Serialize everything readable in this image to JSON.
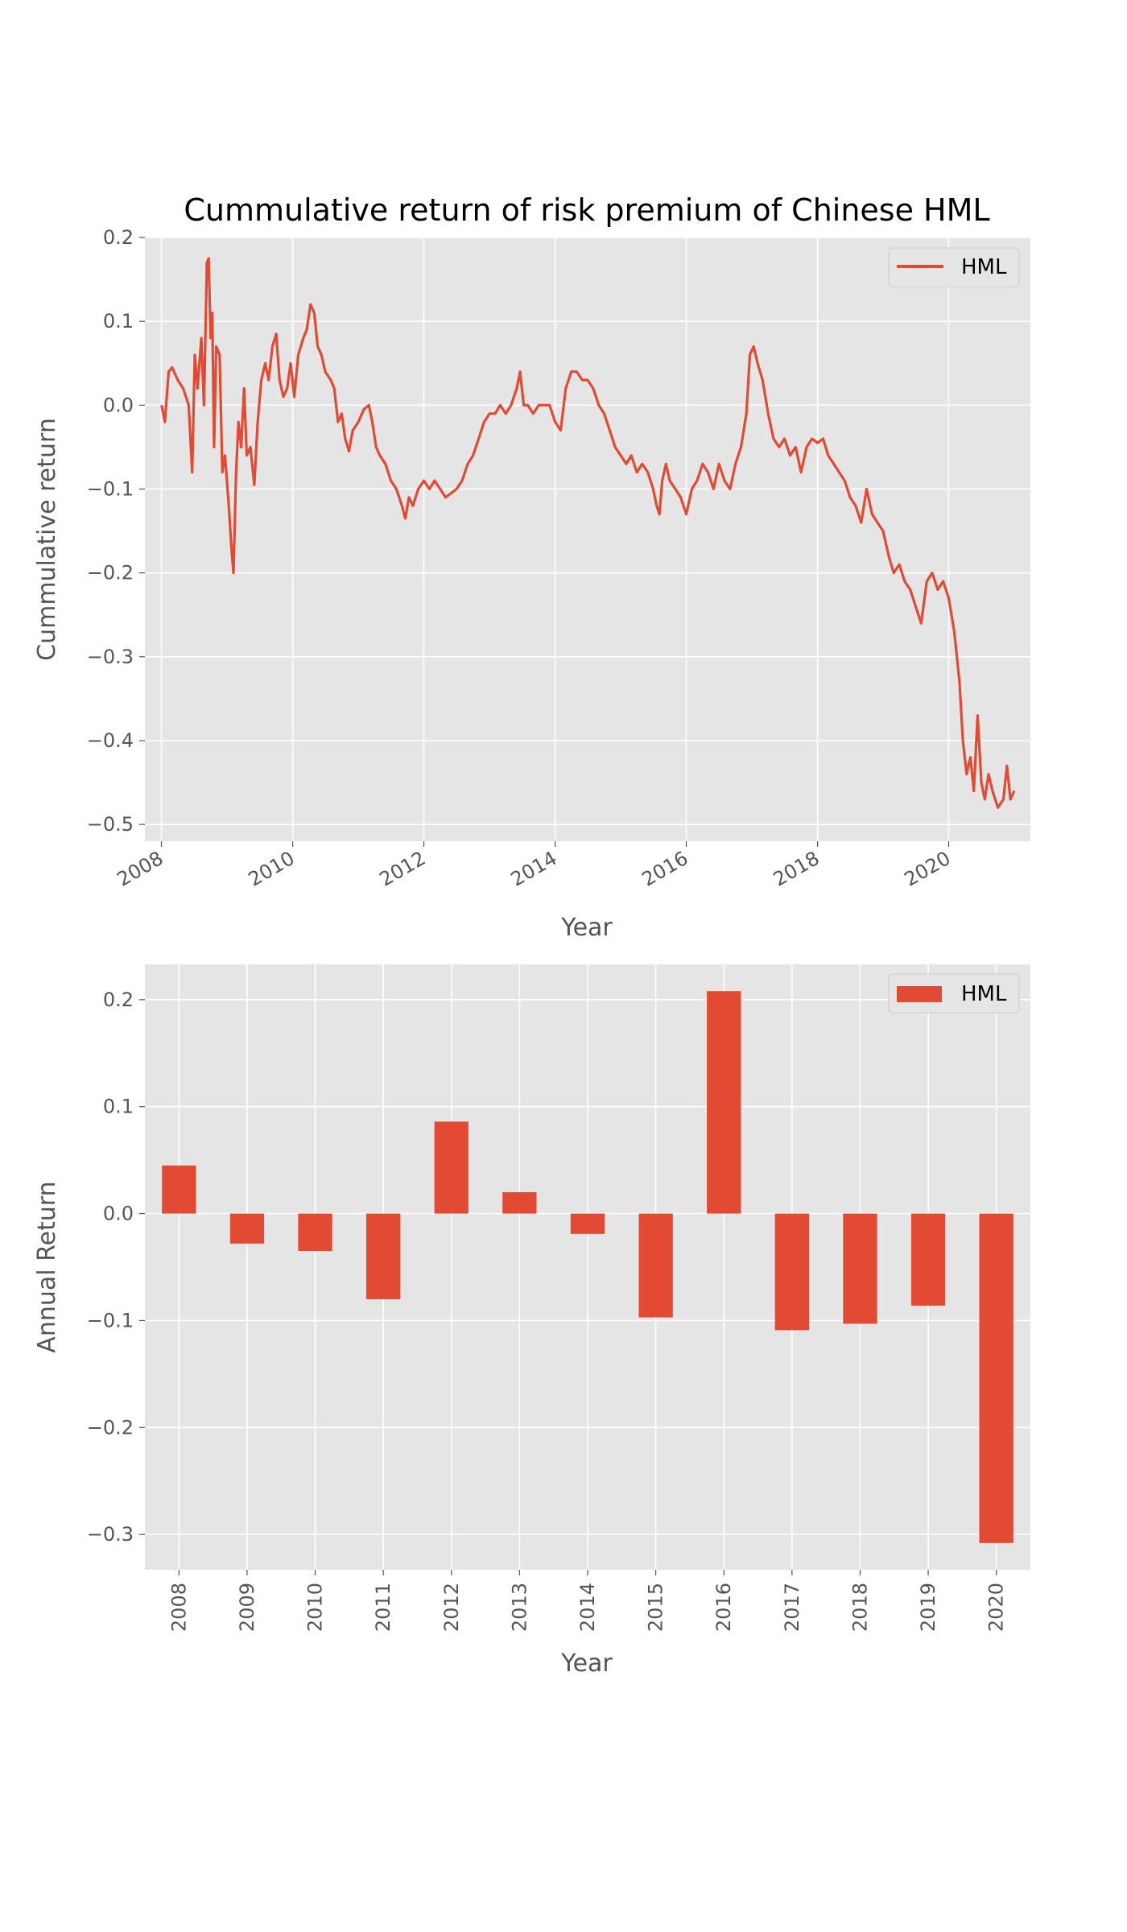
{
  "colors": {
    "axes_bg": "#E5E5E5",
    "grid": "#FFFFFF",
    "series": "#E24A33",
    "tick_text": "#555555",
    "legend_bg": "#E5E5E5",
    "legend_border": "#CCCCCC"
  },
  "chart_data": [
    {
      "type": "line",
      "title": "Cummulative return of risk premium of Chinese HML",
      "xlabel": "Year",
      "ylabel": "Cummulative return",
      "x_type": "date",
      "xlim": [
        "2007-10-01",
        "2021-03-31"
      ],
      "ylim": [
        -0.52,
        0.2
      ],
      "x_ticks": [
        "2008",
        "2010",
        "2012",
        "2014",
        "2016",
        "2018",
        "2020"
      ],
      "y_ticks": [
        "0.2",
        "0.1",
        "0.0",
        "−0.1",
        "−0.2",
        "−0.3",
        "−0.4",
        "−0.5"
      ],
      "y_tick_values": [
        0.2,
        0.1,
        0.0,
        -0.1,
        -0.2,
        -0.3,
        -0.4,
        -0.5
      ],
      "grid": true,
      "legend_position": "top-right",
      "series": [
        {
          "name": "HML",
          "points": [
            [
              "2008-01-02",
              0.0
            ],
            [
              "2008-01-20",
              -0.02
            ],
            [
              "2008-02-10",
              0.04
            ],
            [
              "2008-03-01",
              0.045
            ],
            [
              "2008-04-01",
              0.03
            ],
            [
              "2008-05-01",
              0.02
            ],
            [
              "2008-06-01",
              0.0
            ],
            [
              "2008-06-20",
              -0.08
            ],
            [
              "2008-07-05",
              0.06
            ],
            [
              "2008-07-20",
              0.02
            ],
            [
              "2008-08-10",
              0.08
            ],
            [
              "2008-08-25",
              0.0
            ],
            [
              "2008-09-10",
              0.17
            ],
            [
              "2008-09-20",
              0.175
            ],
            [
              "2008-10-01",
              0.08
            ],
            [
              "2008-10-10",
              0.11
            ],
            [
              "2008-10-20",
              -0.05
            ],
            [
              "2008-11-01",
              0.07
            ],
            [
              "2008-11-20",
              0.06
            ],
            [
              "2008-12-05",
              -0.08
            ],
            [
              "2008-12-20",
              -0.06
            ],
            [
              "2009-01-10",
              -0.12
            ],
            [
              "2009-01-25",
              -0.17
            ],
            [
              "2009-02-05",
              -0.2
            ],
            [
              "2009-02-20",
              -0.08
            ],
            [
              "2009-03-05",
              -0.02
            ],
            [
              "2009-03-20",
              -0.05
            ],
            [
              "2009-04-05",
              0.02
            ],
            [
              "2009-04-20",
              -0.06
            ],
            [
              "2009-05-10",
              -0.05
            ],
            [
              "2009-06-01",
              -0.095
            ],
            [
              "2009-06-20",
              -0.02
            ],
            [
              "2009-07-10",
              0.03
            ],
            [
              "2009-08-01",
              0.05
            ],
            [
              "2009-08-20",
              0.03
            ],
            [
              "2009-09-10",
              0.07
            ],
            [
              "2009-10-01",
              0.085
            ],
            [
              "2009-10-20",
              0.03
            ],
            [
              "2009-11-10",
              0.01
            ],
            [
              "2009-12-01",
              0.02
            ],
            [
              "2009-12-20",
              0.05
            ],
            [
              "2010-01-10",
              0.01
            ],
            [
              "2010-02-01",
              0.06
            ],
            [
              "2010-03-01",
              0.08
            ],
            [
              "2010-03-20",
              0.09
            ],
            [
              "2010-04-10",
              0.12
            ],
            [
              "2010-05-01",
              0.11
            ],
            [
              "2010-05-20",
              0.07
            ],
            [
              "2010-06-10",
              0.06
            ],
            [
              "2010-07-01",
              0.04
            ],
            [
              "2010-08-01",
              0.03
            ],
            [
              "2010-08-20",
              0.02
            ],
            [
              "2010-09-10",
              -0.02
            ],
            [
              "2010-10-01",
              -0.01
            ],
            [
              "2010-10-20",
              -0.04
            ],
            [
              "2010-11-10",
              -0.055
            ],
            [
              "2010-12-01",
              -0.03
            ],
            [
              "2011-01-01",
              -0.02
            ],
            [
              "2011-02-01",
              -0.005
            ],
            [
              "2011-03-01",
              0.0
            ],
            [
              "2011-03-20",
              -0.02
            ],
            [
              "2011-04-10",
              -0.05
            ],
            [
              "2011-05-01",
              -0.06
            ],
            [
              "2011-06-01",
              -0.07
            ],
            [
              "2011-07-01",
              -0.09
            ],
            [
              "2011-08-01",
              -0.1
            ],
            [
              "2011-09-01",
              -0.12
            ],
            [
              "2011-09-20",
              -0.135
            ],
            [
              "2011-10-10",
              -0.11
            ],
            [
              "2011-11-01",
              -0.12
            ],
            [
              "2011-12-01",
              -0.1
            ],
            [
              "2012-01-01",
              -0.09
            ],
            [
              "2012-02-01",
              -0.1
            ],
            [
              "2012-03-01",
              -0.09
            ],
            [
              "2012-04-01",
              -0.1
            ],
            [
              "2012-05-01",
              -0.11
            ],
            [
              "2012-06-01",
              -0.105
            ],
            [
              "2012-07-01",
              -0.1
            ],
            [
              "2012-08-01",
              -0.09
            ],
            [
              "2012-09-01",
              -0.07
            ],
            [
              "2012-10-01",
              -0.06
            ],
            [
              "2012-11-01",
              -0.04
            ],
            [
              "2012-12-01",
              -0.02
            ],
            [
              "2013-01-01",
              -0.01
            ],
            [
              "2013-02-01",
              -0.01
            ],
            [
              "2013-03-01",
              0.0
            ],
            [
              "2013-04-01",
              -0.01
            ],
            [
              "2013-05-01",
              0.0
            ],
            [
              "2013-06-01",
              0.02
            ],
            [
              "2013-06-20",
              0.04
            ],
            [
              "2013-07-10",
              0.0
            ],
            [
              "2013-08-01",
              0.0
            ],
            [
              "2013-09-01",
              -0.01
            ],
            [
              "2013-10-01",
              0.0
            ],
            [
              "2013-11-01",
              0.0
            ],
            [
              "2013-12-01",
              0.0
            ],
            [
              "2014-01-01",
              -0.02
            ],
            [
              "2014-02-01",
              -0.03
            ],
            [
              "2014-03-01",
              0.02
            ],
            [
              "2014-04-01",
              0.04
            ],
            [
              "2014-05-01",
              0.04
            ],
            [
              "2014-06-01",
              0.03
            ],
            [
              "2014-07-01",
              0.03
            ],
            [
              "2014-08-01",
              0.02
            ],
            [
              "2014-09-01",
              0.0
            ],
            [
              "2014-10-01",
              -0.01
            ],
            [
              "2014-11-01",
              -0.03
            ],
            [
              "2014-12-01",
              -0.05
            ],
            [
              "2015-01-01",
              -0.06
            ],
            [
              "2015-02-01",
              -0.07
            ],
            [
              "2015-03-01",
              -0.06
            ],
            [
              "2015-04-01",
              -0.08
            ],
            [
              "2015-05-01",
              -0.07
            ],
            [
              "2015-06-01",
              -0.08
            ],
            [
              "2015-07-01",
              -0.1
            ],
            [
              "2015-07-20",
              -0.12
            ],
            [
              "2015-08-05",
              -0.13
            ],
            [
              "2015-08-20",
              -0.09
            ],
            [
              "2015-09-10",
              -0.07
            ],
            [
              "2015-10-01",
              -0.09
            ],
            [
              "2015-11-01",
              -0.1
            ],
            [
              "2015-12-01",
              -0.11
            ],
            [
              "2016-01-01",
              -0.13
            ],
            [
              "2016-02-01",
              -0.1
            ],
            [
              "2016-03-01",
              -0.09
            ],
            [
              "2016-04-01",
              -0.07
            ],
            [
              "2016-05-01",
              -0.08
            ],
            [
              "2016-06-01",
              -0.1
            ],
            [
              "2016-07-01",
              -0.07
            ],
            [
              "2016-08-01",
              -0.09
            ],
            [
              "2016-09-01",
              -0.1
            ],
            [
              "2016-10-01",
              -0.07
            ],
            [
              "2016-11-01",
              -0.05
            ],
            [
              "2016-12-01",
              -0.01
            ],
            [
              "2016-12-20",
              0.06
            ],
            [
              "2017-01-10",
              0.07
            ],
            [
              "2017-02-01",
              0.05
            ],
            [
              "2017-03-01",
              0.03
            ],
            [
              "2017-04-01",
              -0.01
            ],
            [
              "2017-05-01",
              -0.04
            ],
            [
              "2017-06-01",
              -0.05
            ],
            [
              "2017-07-01",
              -0.04
            ],
            [
              "2017-08-01",
              -0.06
            ],
            [
              "2017-09-01",
              -0.05
            ],
            [
              "2017-10-01",
              -0.08
            ],
            [
              "2017-11-01",
              -0.05
            ],
            [
              "2017-12-01",
              -0.04
            ],
            [
              "2018-01-01",
              -0.045
            ],
            [
              "2018-02-01",
              -0.04
            ],
            [
              "2018-03-01",
              -0.06
            ],
            [
              "2018-04-01",
              -0.07
            ],
            [
              "2018-05-01",
              -0.08
            ],
            [
              "2018-06-01",
              -0.09
            ],
            [
              "2018-07-01",
              -0.11
            ],
            [
              "2018-08-01",
              -0.12
            ],
            [
              "2018-09-01",
              -0.14
            ],
            [
              "2018-10-01",
              -0.1
            ],
            [
              "2018-11-01",
              -0.13
            ],
            [
              "2018-12-01",
              -0.14
            ],
            [
              "2019-01-01",
              -0.15
            ],
            [
              "2019-02-01",
              -0.18
            ],
            [
              "2019-03-01",
              -0.2
            ],
            [
              "2019-04-01",
              -0.19
            ],
            [
              "2019-05-01",
              -0.21
            ],
            [
              "2019-06-01",
              -0.22
            ],
            [
              "2019-07-01",
              -0.24
            ],
            [
              "2019-08-01",
              -0.26
            ],
            [
              "2019-09-01",
              -0.21
            ],
            [
              "2019-10-01",
              -0.2
            ],
            [
              "2019-11-01",
              -0.22
            ],
            [
              "2019-12-01",
              -0.21
            ],
            [
              "2020-01-01",
              -0.23
            ],
            [
              "2020-02-01",
              -0.27
            ],
            [
              "2020-03-01",
              -0.33
            ],
            [
              "2020-03-20",
              -0.4
            ],
            [
              "2020-04-10",
              -0.44
            ],
            [
              "2020-05-01",
              -0.42
            ],
            [
              "2020-05-20",
              -0.46
            ],
            [
              "2020-06-10",
              -0.37
            ],
            [
              "2020-07-01",
              -0.45
            ],
            [
              "2020-07-20",
              -0.47
            ],
            [
              "2020-08-10",
              -0.44
            ],
            [
              "2020-09-01",
              -0.46
            ],
            [
              "2020-10-01",
              -0.48
            ],
            [
              "2020-11-01",
              -0.47
            ],
            [
              "2020-11-20",
              -0.43
            ],
            [
              "2020-12-10",
              -0.47
            ],
            [
              "2020-12-31",
              -0.46
            ]
          ]
        }
      ]
    },
    {
      "type": "bar",
      "title": "",
      "xlabel": "Year",
      "ylabel": "Annual Return",
      "categories": [
        "2008",
        "2009",
        "2010",
        "2011",
        "2012",
        "2013",
        "2014",
        "2015",
        "2016",
        "2017",
        "2018",
        "2019",
        "2020"
      ],
      "ylim": [
        -0.333,
        0.233
      ],
      "y_ticks": [
        "0.2",
        "0.1",
        "0.0",
        "−0.1",
        "−0.2",
        "−0.3"
      ],
      "y_tick_values": [
        0.2,
        0.1,
        0.0,
        -0.1,
        -0.2,
        -0.3
      ],
      "grid": true,
      "legend_position": "top-right",
      "series": [
        {
          "name": "HML",
          "values": [
            0.045,
            -0.028,
            -0.035,
            -0.08,
            0.086,
            0.02,
            -0.019,
            -0.097,
            0.208,
            -0.109,
            -0.103,
            -0.086,
            -0.308
          ]
        }
      ]
    }
  ]
}
